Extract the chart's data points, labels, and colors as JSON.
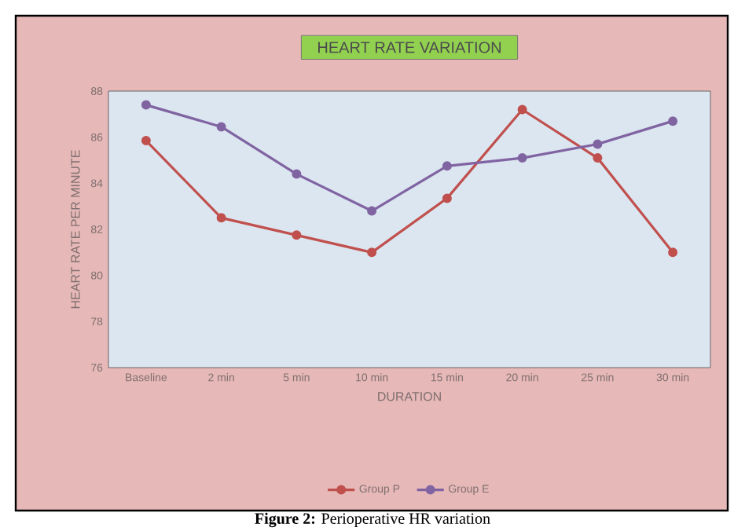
{
  "chart_data": {
    "type": "line",
    "title": "HEART RATE VARIATION",
    "xlabel": "DURATION",
    "ylabel": "HEART RATE PER MINUTE",
    "categories": [
      "Baseline",
      "2 min",
      "5 min",
      "10 min",
      "15 min",
      "20 min",
      "25 min",
      "30 min"
    ],
    "series": [
      {
        "name": "Group P",
        "color": "#c0504d",
        "values": [
          85.85,
          82.5,
          81.75,
          81.0,
          83.35,
          87.2,
          85.1,
          81.0
        ]
      },
      {
        "name": "Group E",
        "color": "#8064a2",
        "values": [
          87.4,
          86.45,
          84.4,
          82.8,
          84.75,
          85.1,
          85.7,
          86.7
        ]
      }
    ],
    "ylim": [
      76,
      88
    ],
    "yticks": [
      76,
      78,
      80,
      82,
      84,
      86,
      88
    ],
    "legend": "bottom",
    "marker": "circle",
    "line_style": "solid",
    "annotations": [
      "**Figure 2:** Perioperative HR variation"
    ]
  }
}
